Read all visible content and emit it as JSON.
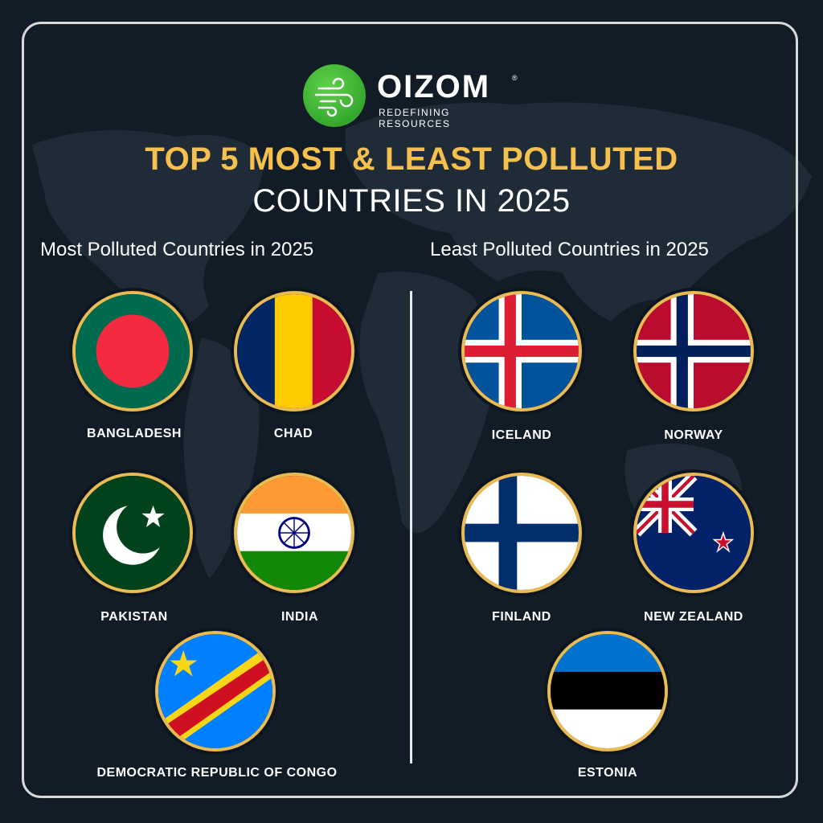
{
  "brand": {
    "name": "OIZOM",
    "registered": "®",
    "tagline": "REDEFINING RESOURCES"
  },
  "title": {
    "line1": "TOP 5 MOST & LEAST POLLUTED",
    "line2": "COUNTRIES IN 2025"
  },
  "colors": {
    "accent": "#f5c04e",
    "background": "#111c26",
    "logo_green": "#3fb436"
  },
  "most": {
    "heading": "Most Polluted Countries in 2025",
    "countries": [
      {
        "name": "BANGLADESH",
        "flag": "bangladesh-flag-icon"
      },
      {
        "name": "CHAD",
        "flag": "chad-flag-icon"
      },
      {
        "name": "PAKISTAN",
        "flag": "pakistan-flag-icon"
      },
      {
        "name": "INDIA",
        "flag": "india-flag-icon"
      },
      {
        "name": "DEMOCRATIC REPUBLIC OF CONGO",
        "flag": "drc-flag-icon"
      }
    ]
  },
  "least": {
    "heading": "Least Polluted Countries in 2025",
    "countries": [
      {
        "name": "ICELAND",
        "flag": "iceland-flag-icon"
      },
      {
        "name": "NORWAY",
        "flag": "norway-flag-icon"
      },
      {
        "name": "FINLAND",
        "flag": "finland-flag-icon"
      },
      {
        "name": "NEW ZEALAND",
        "flag": "new-zealand-flag-icon"
      },
      {
        "name": "ESTONIA",
        "flag": "estonia-flag-icon"
      }
    ]
  }
}
